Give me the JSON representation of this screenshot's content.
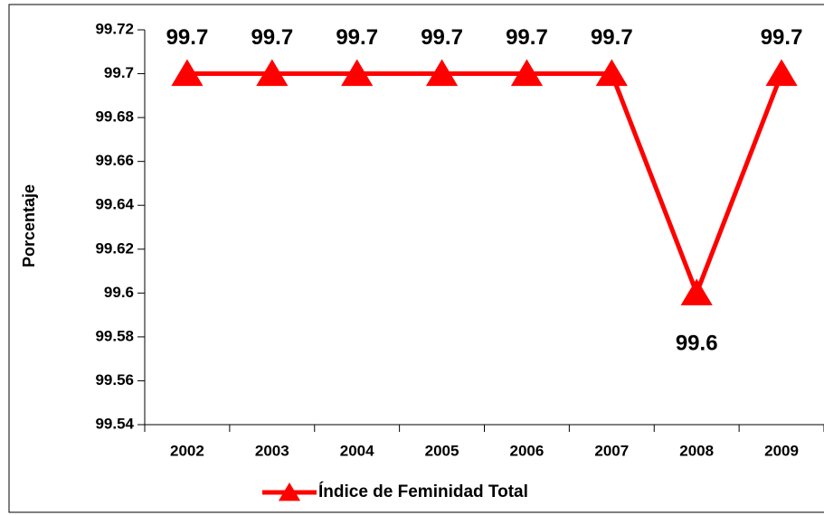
{
  "chart_data": {
    "type": "line",
    "ylabel": "Porcentaje",
    "categories": [
      "2002",
      "2003",
      "2004",
      "2005",
      "2006",
      "2007",
      "2008",
      "2009"
    ],
    "series": [
      {
        "name": "Índice de Feminidad Total",
        "color": "#ff0000",
        "values": [
          99.7,
          99.7,
          99.7,
          99.7,
          99.7,
          99.7,
          99.6,
          99.7
        ]
      }
    ],
    "ylim": [
      99.54,
      99.72
    ],
    "yticks": [
      99.54,
      99.56,
      99.58,
      99.6,
      99.62,
      99.64,
      99.66,
      99.68,
      99.7,
      99.72
    ],
    "grid": false,
    "legend": "bottom"
  }
}
